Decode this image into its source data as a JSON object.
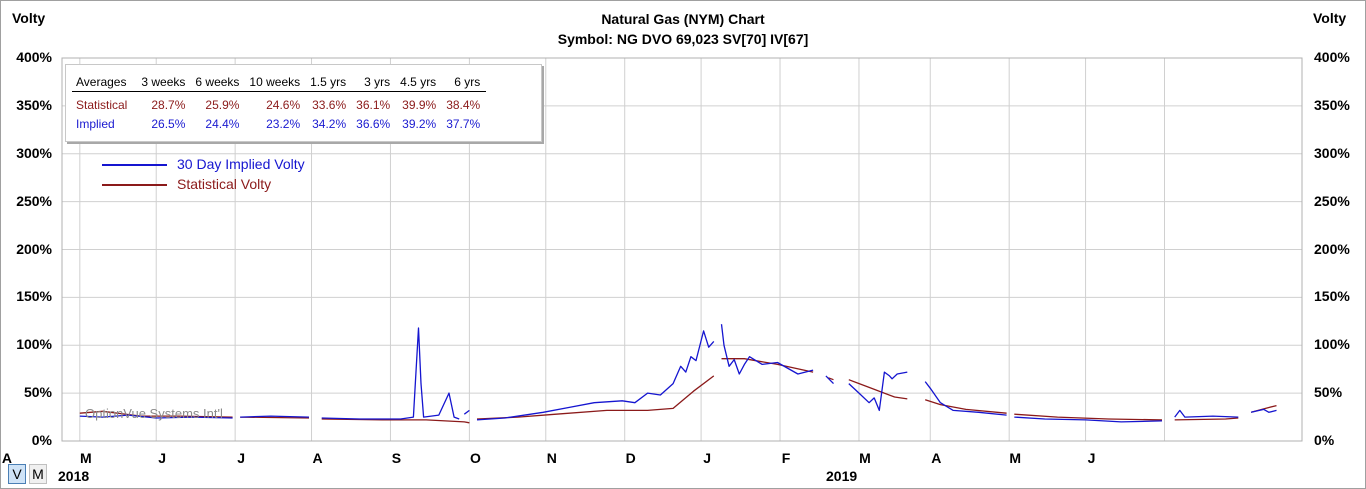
{
  "header": {
    "left_label": "Volty",
    "right_label": "Volty",
    "title": "Natural Gas (NYM) Chart",
    "subtitle": "Symbol: NG  DVO 69,023  SV[70]  IV[67]"
  },
  "averages": {
    "columns": [
      "Averages",
      "3 weeks",
      "6 weeks",
      "10 weeks",
      "1.5 yrs",
      "3 yrs",
      "4.5 yrs",
      "6 yrs"
    ],
    "rows": [
      {
        "label": "Statistical",
        "values": [
          "28.7%",
          "25.9%",
          "24.6%",
          "33.6%",
          "36.1%",
          "39.9%",
          "38.4%"
        ]
      },
      {
        "label": "Implied",
        "values": [
          "26.5%",
          "24.4%",
          "23.2%",
          "34.2%",
          "36.6%",
          "39.2%",
          "37.7%"
        ]
      }
    ]
  },
  "legend": {
    "implied": "30 Day Implied Volty",
    "statistical": "Statistical Volty"
  },
  "watermark": "OptionVue Systems Int'l",
  "view_buttons": {
    "v": "V",
    "m": "M"
  },
  "colors": {
    "implied": "#1515d0",
    "statistical": "#8b1a1a",
    "grid": "#d0d0d0"
  },
  "chart_data": {
    "type": "line",
    "x_type": "date",
    "ylim": [
      0,
      400
    ],
    "yticks": [
      "0%",
      "50%",
      "100%",
      "150%",
      "200%",
      "250%",
      "300%",
      "350%",
      "400%"
    ],
    "month_labels": [
      "A",
      "M",
      "J",
      "J",
      "A",
      "S",
      "O",
      "N",
      "D",
      "J",
      "F",
      "M",
      "A",
      "M",
      "J"
    ],
    "year_labels": [
      "2018",
      "2019"
    ],
    "grid": true,
    "legend_position": "top-left",
    "series": [
      {
        "name": "30 Day Implied Volty",
        "color": "#1515d0",
        "segments": [
          [
            [
              "2018-04-01",
              26
            ],
            [
              "2018-04-10",
              25
            ],
            [
              "2018-04-20",
              27
            ],
            [
              "2018-05-01",
              24
            ],
            [
              "2018-05-15",
              25
            ],
            [
              "2018-05-31",
              24
            ]
          ],
          [
            [
              "2018-06-03",
              25
            ],
            [
              "2018-06-15",
              26
            ],
            [
              "2018-06-30",
              25
            ]
          ],
          [
            [
              "2018-07-05",
              24
            ],
            [
              "2018-07-20",
              23
            ],
            [
              "2018-08-05",
              23
            ],
            [
              "2018-08-10",
              25
            ],
            [
              "2018-08-12",
              118
            ],
            [
              "2018-08-13",
              60
            ],
            [
              "2018-08-14",
              25
            ],
            [
              "2018-08-20",
              27
            ],
            [
              "2018-08-24",
              50
            ],
            [
              "2018-08-26",
              25
            ],
            [
              "2018-08-28",
              23
            ]
          ],
          [
            [
              "2018-08-30",
              28
            ],
            [
              "2018-09-01",
              32
            ]
          ],
          [
            [
              "2018-09-04",
              22
            ],
            [
              "2018-09-15",
              24
            ],
            [
              "2018-09-30",
              30
            ],
            [
              "2018-10-10",
              35
            ],
            [
              "2018-10-20",
              40
            ],
            [
              "2018-10-31",
              42
            ],
            [
              "2018-11-05",
              40
            ],
            [
              "2018-11-10",
              50
            ],
            [
              "2018-11-15",
              48
            ],
            [
              "2018-11-20",
              60
            ],
            [
              "2018-11-23",
              78
            ],
            [
              "2018-11-25",
              72
            ],
            [
              "2018-11-27",
              88
            ],
            [
              "2018-11-29",
              84
            ],
            [
              "2018-12-02",
              115
            ],
            [
              "2018-12-04",
              98
            ],
            [
              "2018-12-06",
              104
            ]
          ],
          [
            [
              "2018-12-09",
              122
            ],
            [
              "2018-12-10",
              100
            ],
            [
              "2018-12-12",
              78
            ],
            [
              "2018-12-14",
              85
            ],
            [
              "2018-12-16",
              70
            ],
            [
              "2018-12-18",
              80
            ],
            [
              "2018-12-20",
              88
            ],
            [
              "2018-12-25",
              80
            ],
            [
              "2018-12-31",
              82
            ],
            [
              "2019-01-08",
              70
            ],
            [
              "2019-01-14",
              74
            ]
          ],
          [
            [
              "2019-01-19",
              68
            ],
            [
              "2019-01-22",
              60
            ]
          ],
          [
            [
              "2019-01-28",
              60
            ],
            [
              "2019-02-01",
              50
            ],
            [
              "2019-02-05",
              40
            ],
            [
              "2019-02-07",
              45
            ],
            [
              "2019-02-09",
              32
            ],
            [
              "2019-02-11",
              72
            ],
            [
              "2019-02-13",
              68
            ],
            [
              "2019-02-14",
              65
            ],
            [
              "2019-02-16",
              70
            ],
            [
              "2019-02-20",
              72
            ]
          ],
          [
            [
              "2019-02-27",
              62
            ],
            [
              "2019-03-01",
              55
            ],
            [
              "2019-03-05",
              40
            ],
            [
              "2019-03-10",
              32
            ],
            [
              "2019-03-20",
              30
            ],
            [
              "2019-03-31",
              27
            ]
          ],
          [
            [
              "2019-04-03",
              25
            ],
            [
              "2019-04-15",
              23
            ],
            [
              "2019-05-01",
              22
            ],
            [
              "2019-05-15",
              20
            ],
            [
              "2019-05-31",
              21
            ]
          ],
          [
            [
              "2019-06-05",
              25
            ],
            [
              "2019-06-07",
              32
            ],
            [
              "2019-06-09",
              25
            ],
            [
              "2019-06-20",
              26
            ],
            [
              "2019-06-30",
              25
            ]
          ],
          [
            [
              "2019-07-05",
              30
            ],
            [
              "2019-07-10",
              33
            ],
            [
              "2019-07-12",
              30
            ],
            [
              "2019-07-15",
              32
            ]
          ]
        ]
      },
      {
        "name": "Statistical Volty",
        "color": "#8b1a1a",
        "segments": [
          [
            [
              "2018-04-01",
              29
            ],
            [
              "2018-04-10",
              31
            ],
            [
              "2018-04-25",
              26
            ],
            [
              "2018-05-10",
              26
            ],
            [
              "2018-05-31",
              25
            ]
          ],
          [
            [
              "2018-06-03",
              25
            ],
            [
              "2018-06-30",
              24
            ]
          ],
          [
            [
              "2018-07-05",
              23
            ],
            [
              "2018-07-30",
              22
            ],
            [
              "2018-08-15",
              22
            ],
            [
              "2018-08-30",
              20
            ],
            [
              "2018-09-01",
              19
            ]
          ],
          [
            [
              "2018-09-04",
              23
            ],
            [
              "2018-09-20",
              25
            ],
            [
              "2018-10-05",
              28
            ],
            [
              "2018-10-25",
              32
            ],
            [
              "2018-11-10",
              32
            ],
            [
              "2018-11-20",
              34
            ],
            [
              "2018-11-28",
              52
            ],
            [
              "2018-12-06",
              68
            ]
          ],
          [
            [
              "2018-12-09",
              86
            ],
            [
              "2018-12-18",
              86
            ],
            [
              "2018-12-31",
              80
            ],
            [
              "2019-01-14",
              72
            ]
          ],
          [
            [
              "2019-01-20",
              66
            ],
            [
              "2019-01-22",
              64
            ]
          ],
          [
            [
              "2019-01-28",
              64
            ],
            [
              "2019-02-05",
              56
            ],
            [
              "2019-02-15",
              46
            ],
            [
              "2019-02-20",
              44
            ]
          ],
          [
            [
              "2019-02-27",
              43
            ],
            [
              "2019-03-05",
              38
            ],
            [
              "2019-03-15",
              33
            ],
            [
              "2019-03-31",
              29
            ]
          ],
          [
            [
              "2019-04-03",
              28
            ],
            [
              "2019-04-20",
              25
            ],
            [
              "2019-05-10",
              23
            ],
            [
              "2019-05-31",
              22
            ]
          ],
          [
            [
              "2019-06-05",
              22
            ],
            [
              "2019-06-25",
              23
            ],
            [
              "2019-06-30",
              24
            ]
          ],
          [
            [
              "2019-07-05",
              30
            ],
            [
              "2019-07-12",
              35
            ],
            [
              "2019-07-15",
              37
            ]
          ]
        ]
      }
    ]
  }
}
